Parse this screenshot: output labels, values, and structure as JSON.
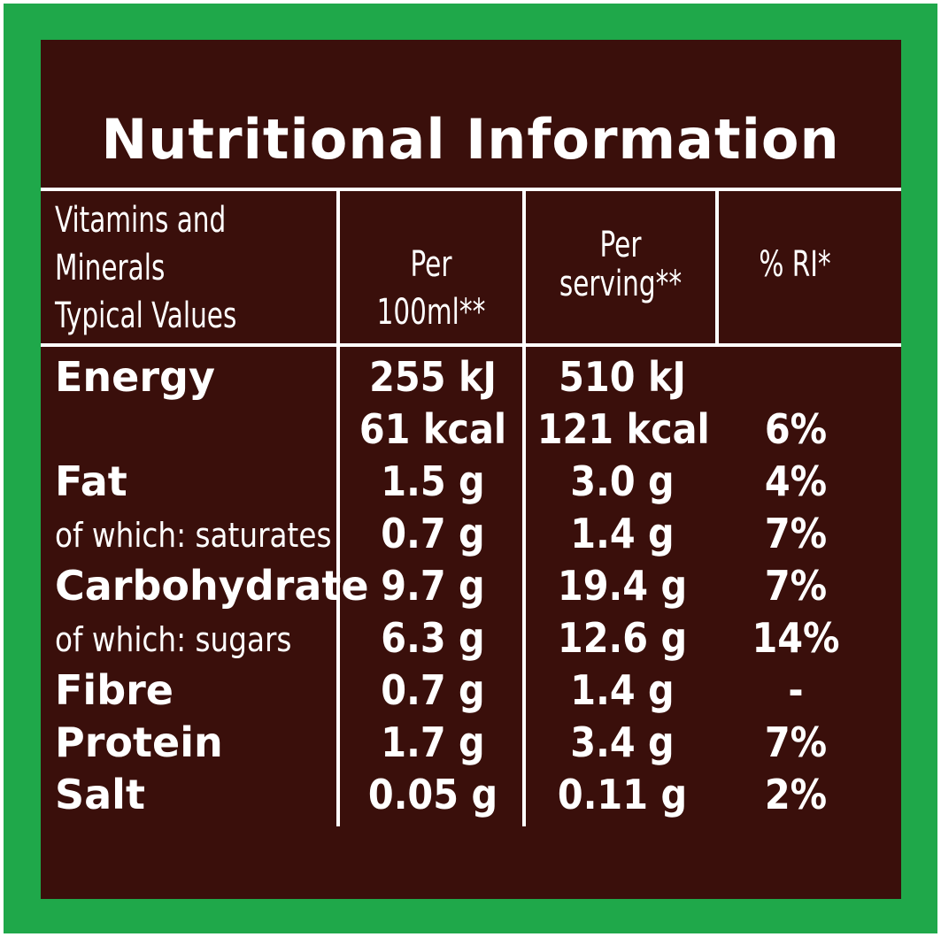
{
  "title": "Nutritional Information",
  "header": {
    "col0": [
      "Vitamins and",
      "Minerals",
      "Typical Values"
    ],
    "col1": "Per 100ml**",
    "col2": [
      "Per",
      "serving**"
    ],
    "col3": "% RI*"
  },
  "rows": [
    {
      "label": "Energy",
      "per100": "255 kJ",
      "perServing": "510 kJ",
      "ri": ""
    },
    {
      "label": "",
      "per100": "61 kcal",
      "perServing": "121 kcal",
      "ri": "6%"
    },
    {
      "label": "Fat",
      "per100": "1.5 g",
      "perServing": "3.0 g",
      "ri": "4%"
    },
    {
      "label": "of which: saturates",
      "per100": "0.7 g",
      "perServing": "1.4 g",
      "ri": "7%"
    },
    {
      "label": "Carbohydrate",
      "per100": "9.7 g",
      "perServing": "19.4 g",
      "ri": "7%"
    },
    {
      "label": "of which: sugars",
      "per100": "6.3 g",
      "perServing": "12.6 g",
      "ri": "14%"
    },
    {
      "label": "Fibre",
      "per100": "0.7 g",
      "perServing": "1.4 g",
      "ri": "-"
    },
    {
      "label": "Protein",
      "per100": "1.7 g",
      "perServing": "3.4 g",
      "ri": "7%"
    },
    {
      "label": "Salt",
      "per100": "0.05 g",
      "perServing": "0.11 g",
      "ri": "2%"
    }
  ],
  "colors": {
    "border": "#1fa84a",
    "panel": "#3a0f0b",
    "text": "#ffffff"
  }
}
